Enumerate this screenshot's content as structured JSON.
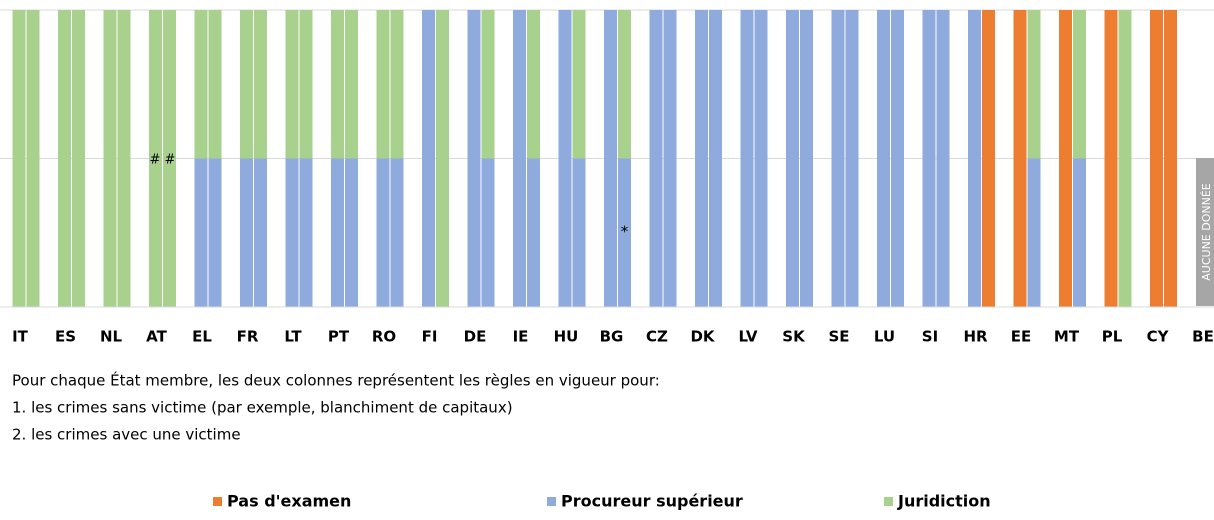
{
  "chart_data": {
    "type": "stacked_pair_bar",
    "categories": [
      "IT",
      "ES",
      "NL",
      "AT",
      "EL",
      "FR",
      "LT",
      "PT",
      "RO",
      "FI",
      "DE",
      "IE",
      "HU",
      "BG",
      "CZ",
      "DK",
      "LV",
      "SK",
      "SE",
      "LU",
      "SI",
      "HR",
      "EE",
      "MT",
      "PL",
      "CY",
      "BE"
    ],
    "series": [
      {
        "name": "Pas d'examen",
        "color": "#ed7d31",
        "values": [
          [
            0,
            0
          ],
          [
            0,
            0
          ],
          [
            0,
            0
          ],
          [
            0,
            0
          ],
          [
            0,
            0
          ],
          [
            0,
            0
          ],
          [
            0,
            0
          ],
          [
            0,
            0
          ],
          [
            0,
            0
          ],
          [
            0,
            0
          ],
          [
            0,
            0
          ],
          [
            0,
            0
          ],
          [
            0,
            0
          ],
          [
            0,
            0
          ],
          [
            0,
            0
          ],
          [
            0,
            0
          ],
          [
            0,
            0
          ],
          [
            0,
            0
          ],
          [
            0,
            0
          ],
          [
            0,
            0
          ],
          [
            0,
            0
          ],
          [
            0,
            2
          ],
          [
            2,
            0
          ],
          [
            2,
            0
          ],
          [
            2,
            0
          ],
          [
            2,
            2
          ],
          null
        ]
      },
      {
        "name": "Procureur supérieur",
        "color": "#8faadc",
        "values": [
          [
            0,
            0
          ],
          [
            0,
            0
          ],
          [
            0,
            0
          ],
          [
            0,
            0
          ],
          [
            1,
            1
          ],
          [
            1,
            1
          ],
          [
            1,
            1
          ],
          [
            1,
            1
          ],
          [
            1,
            1
          ],
          [
            2,
            0
          ],
          [
            2,
            1
          ],
          [
            2,
            1
          ],
          [
            2,
            1
          ],
          [
            2,
            1
          ],
          [
            2,
            2
          ],
          [
            2,
            2
          ],
          [
            2,
            2
          ],
          [
            2,
            2
          ],
          [
            2,
            2
          ],
          [
            2,
            2
          ],
          [
            2,
            2
          ],
          [
            2,
            0
          ],
          [
            0,
            1
          ],
          [
            0,
            1
          ],
          [
            0,
            0
          ],
          [
            0,
            0
          ],
          null
        ]
      },
      {
        "name": "Juridiction",
        "color": "#a9d18e",
        "values": [
          [
            2,
            2
          ],
          [
            2,
            2
          ],
          [
            2,
            2
          ],
          [
            2,
            2
          ],
          [
            1,
            1
          ],
          [
            1,
            1
          ],
          [
            1,
            1
          ],
          [
            1,
            1
          ],
          [
            1,
            1
          ],
          [
            0,
            2
          ],
          [
            0,
            1
          ],
          [
            0,
            1
          ],
          [
            0,
            1
          ],
          [
            0,
            1
          ],
          [
            0,
            0
          ],
          [
            0,
            0
          ],
          [
            0,
            0
          ],
          [
            0,
            0
          ],
          [
            0,
            0
          ],
          [
            0,
            0
          ],
          [
            0,
            0
          ],
          [
            0,
            0
          ],
          [
            0,
            1
          ],
          [
            0,
            1
          ],
          [
            0,
            2
          ],
          [
            0,
            0
          ],
          null
        ]
      }
    ],
    "ylim": [
      0,
      2
    ],
    "yticks": [
      0,
      1,
      2
    ],
    "grid": true,
    "annotations": [
      {
        "text": "# #",
        "category": "AT"
      },
      {
        "text": "*",
        "category": "BG"
      },
      {
        "text": "AUCUNE DONNÉE",
        "category": "BE"
      }
    ],
    "notes": [
      "Pour chaque État membre, les deux colonnes représentent les règles en vigueur pour:",
      "1. les crimes sans victime (par exemple, blanchiment de capitaux)",
      "2. les crimes avec une victime"
    ]
  }
}
